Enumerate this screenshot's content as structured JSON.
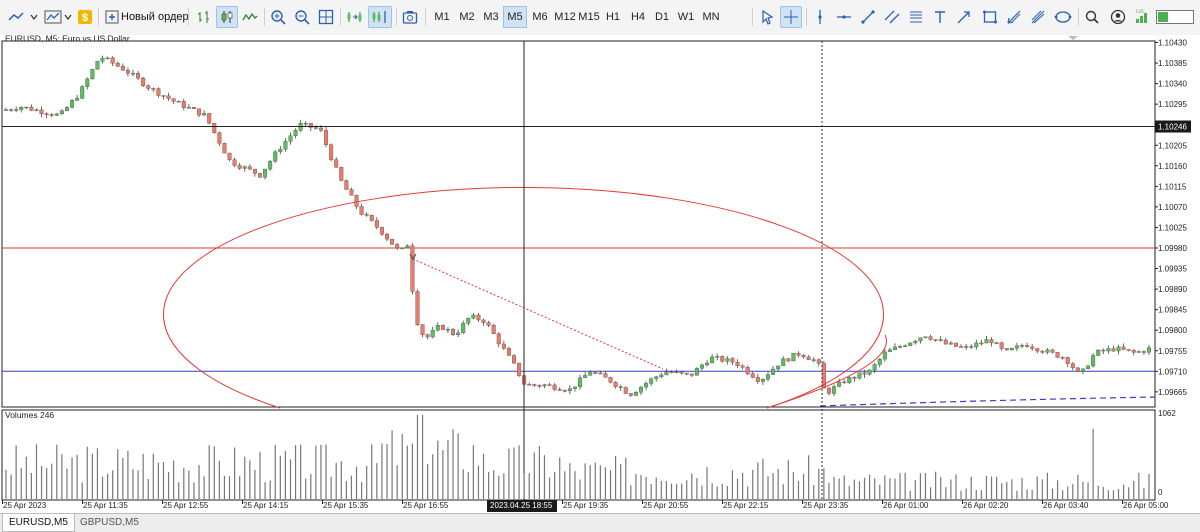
{
  "toolbar": {
    "new_order_label": "Новый ордер",
    "timeframes": [
      "M1",
      "M2",
      "M3",
      "M5",
      "M6",
      "M12",
      "M15",
      "H1",
      "H4",
      "D1",
      "W1",
      "MN"
    ],
    "active_timeframe": "M5",
    "icons_left": [
      "chart-type-icon",
      "indicators-icon",
      "dollar-icon"
    ],
    "icons_mid": [
      "bar-chart-icon",
      "candlestick-icon",
      "line-chart-icon",
      "zoom-in-icon",
      "zoom-out-icon",
      "grid-icon",
      "autoscroll-icon",
      "chart-shift-icon",
      "screenshot-icon"
    ],
    "icons_right": [
      "cursor-icon",
      "crosshair-icon",
      "vertical-line-icon",
      "horizontal-line-icon",
      "trend-line-icon",
      "equidistant-channel-icon",
      "fibonacci-icon",
      "text-icon",
      "arrow-icon",
      "rectangle-icon",
      "andrews-pitchfork-icon",
      "gann-icon",
      "ellipse-icon",
      "search-icon",
      "account-icon",
      "signal-strength-icon"
    ]
  },
  "chart": {
    "symbol_label": "EURUSD, M5:  Euro vs US Dollar",
    "volumes_label": "Volumes 246",
    "crosshair_price": "1.10246",
    "crosshair_time": "2023.04.25 18:55",
    "price_ticks": [
      "1.10430",
      "1.10385",
      "1.10340",
      "1.10295",
      "1.10250",
      "1.10205",
      "1.10160",
      "1.10115",
      "1.10070",
      "1.10025",
      "1.09980",
      "1.09935",
      "1.09890",
      "1.09845",
      "1.09800",
      "1.09755",
      "1.09710",
      "1.09665"
    ],
    "volume_ticks": [
      "1062",
      "0"
    ],
    "time_ticks": [
      "25 Apr 2023",
      "25 Apr 11:35",
      "25 Apr 12:55",
      "25 Apr 14:15",
      "25 Apr 15:35",
      "25 Apr 16:55",
      "25 Apr 19:35",
      "25 Apr 20:55",
      "25 Apr 22:15",
      "25 Apr 23:35",
      "26 Apr 01:00",
      "26 Apr 02:20",
      "26 Apr 03:40",
      "26 Apr 05:00"
    ],
    "red_hline_price": 1.0998,
    "blue_hline_price": 1.0971,
    "colors": {
      "up": "#5cbf5c",
      "down": "#f07a6a",
      "red_line": "#e53935",
      "blue_line": "#3b3bc9"
    }
  },
  "tabs": [
    {
      "label": "EURUSD,M5",
      "active": true
    },
    {
      "label": "GBPUSD,M5",
      "active": false
    }
  ]
}
